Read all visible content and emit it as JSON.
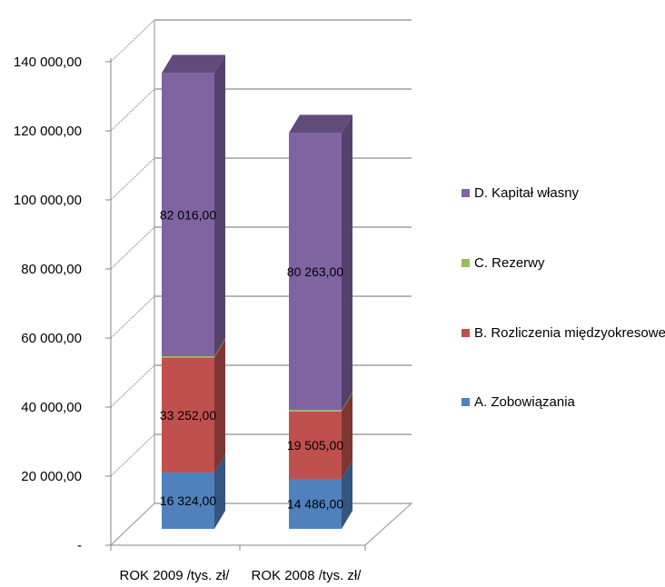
{
  "chart_data": {
    "type": "bar",
    "stacked": true,
    "three_d": true,
    "categories": [
      "ROK 2009 /tys. zł/",
      "ROK 2008 /tys. zł/"
    ],
    "series": [
      {
        "name": "A. Zobowiązania",
        "values": [
          16324.0,
          14486.0
        ],
        "labels": [
          "16 324,00",
          "14 486,00"
        ],
        "color": "#4f81bd"
      },
      {
        "name": "B. Rozliczenia międzyokresowe",
        "values": [
          33252.0,
          19505.0
        ],
        "labels": [
          "33 252,00",
          "19 505,00"
        ],
        "color": "#c0504d"
      },
      {
        "name": "C. Rezerwy",
        "values": [
          400,
          400
        ],
        "labels": [],
        "color": "#9bbb59"
      },
      {
        "name": "D. Kapitał własny",
        "values": [
          82016.0,
          80263.0
        ],
        "labels": [
          "82 016,00",
          "80 263,00"
        ],
        "color": "#8064a2"
      }
    ],
    "y_ticks": [
      "-",
      "20 000,00",
      "40 000,00",
      "60 000,00",
      "80 000,00",
      "100 000,00",
      "120 000,00",
      "140 000,00"
    ],
    "ylim": [
      0,
      140000
    ],
    "grid": true,
    "legend_position": "right",
    "legend_order": [
      "D. Kapitał własny",
      "C. Rezerwy",
      "B. Rozliczenia międzyokresowe",
      "A. Zobowiązania"
    ]
  }
}
